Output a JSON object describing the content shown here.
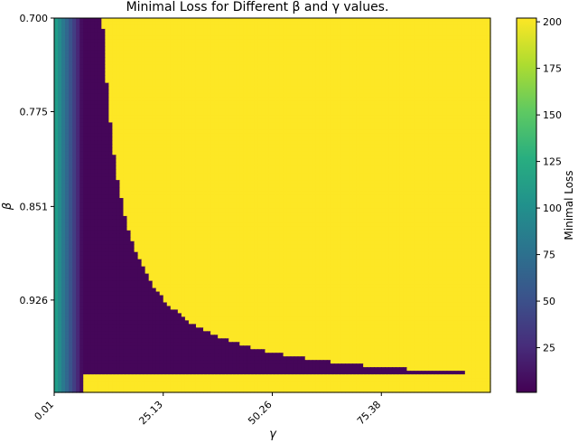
{
  "chart_data": {
    "type": "heatmap",
    "title": "Minimal Loss for Different β and γ values.",
    "xlabel": "γ",
    "ylabel": "β",
    "xlim": [
      0.01,
      100.5
    ],
    "ylim": [
      1.0,
      0.7
    ],
    "x_ticks": [
      {
        "value": 0.01,
        "label": "0.01"
      },
      {
        "value": 25.13,
        "label": "25.13"
      },
      {
        "value": 50.26,
        "label": "50.26"
      },
      {
        "value": 75.38,
        "label": "75.38"
      }
    ],
    "y_ticks": [
      {
        "value": 0.7,
        "label": "0.700"
      },
      {
        "value": 0.775,
        "label": "0.775"
      },
      {
        "value": 0.851,
        "label": "0.851"
      },
      {
        "value": 0.926,
        "label": "0.926"
      }
    ],
    "colorbar": {
      "label": "Minimal Loss",
      "colormap": "viridis",
      "range": [
        1,
        202
      ],
      "ticks": [
        25,
        50,
        75,
        100,
        125,
        150,
        175,
        200
      ]
    },
    "regions": {
      "saturated_value": 202,
      "low_loss_value": 4,
      "left_gradient_gamma": [
        0.01,
        6.5
      ],
      "left_gradient_start_value": 120,
      "low_loss_boundary": "gamma ~ 6.5 + 1.4 / (1 - beta); closes near beta 0.982 at gamma ~ 75"
    }
  }
}
